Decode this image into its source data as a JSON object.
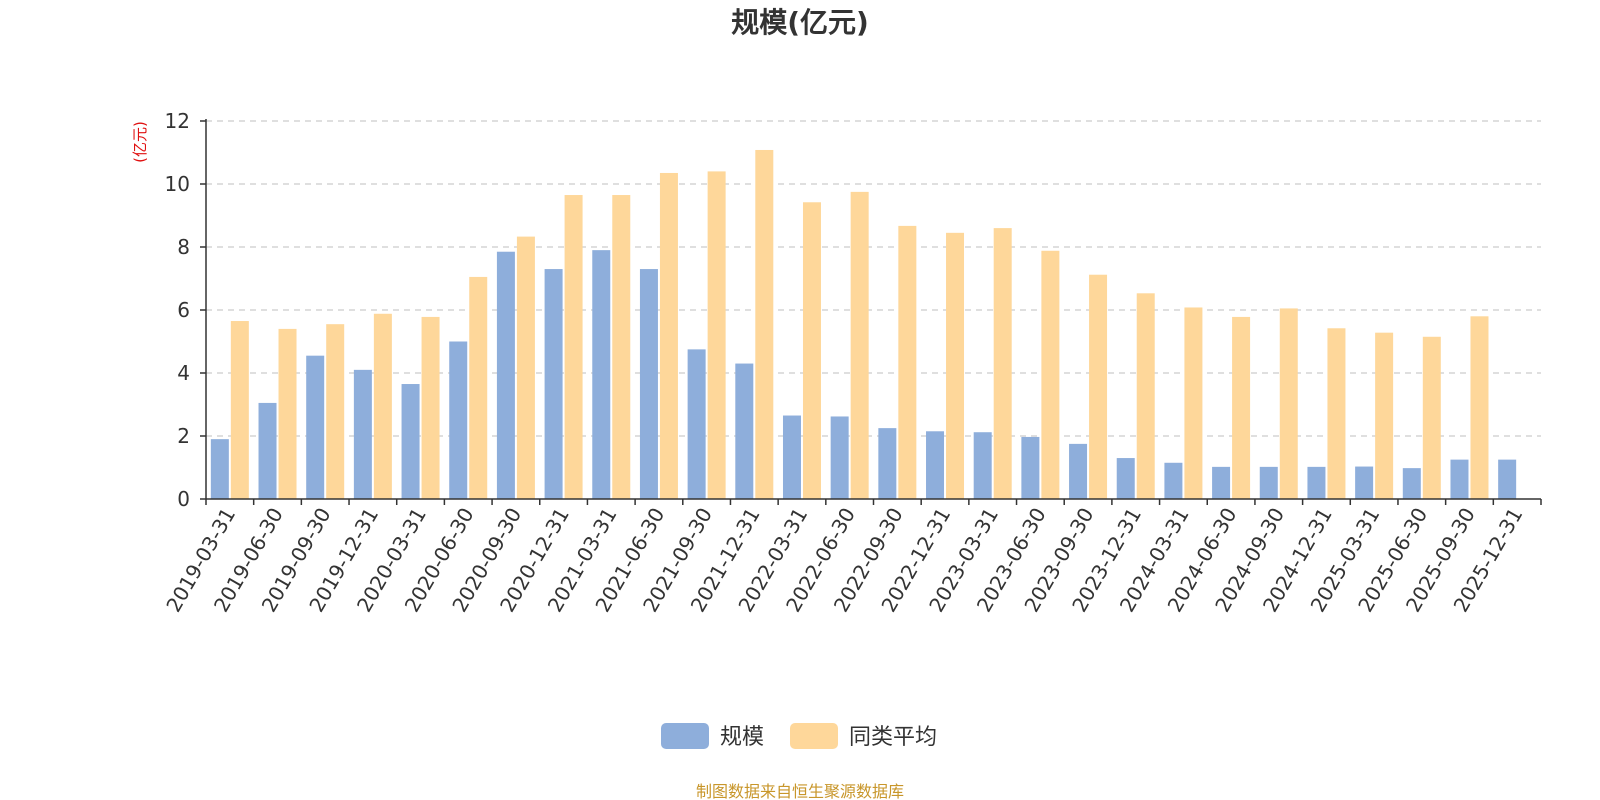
{
  "chart_data": {
    "type": "bar",
    "title": "规模(亿元)",
    "ylabel": "(亿元)",
    "ylim": [
      0,
      12
    ],
    "yticks": [
      0,
      2,
      4,
      6,
      8,
      10,
      12
    ],
    "grid": true,
    "legend_position": "bottom",
    "categories": [
      "2019-03-31",
      "2019-06-30",
      "2019-09-30",
      "2019-12-31",
      "2020-03-31",
      "2020-06-30",
      "2020-09-30",
      "2020-12-31",
      "2021-03-31",
      "2021-06-30",
      "2021-09-30",
      "2021-12-31",
      "2022-03-31",
      "2022-06-30",
      "2022-09-30",
      "2022-12-31",
      "2023-03-31",
      "2023-06-30",
      "2023-09-30",
      "2023-12-31",
      "2024-03-31",
      "2024-06-30",
      "2024-09-30",
      "2024-12-31",
      "2025-03-31",
      "2025-06-30",
      "2025-09-30",
      "2025-12-31"
    ],
    "series": [
      {
        "name": "规模",
        "color": "#8eaedb",
        "values": [
          1.9,
          3.05,
          4.55,
          4.1,
          3.65,
          5.0,
          7.85,
          7.3,
          7.9,
          7.3,
          4.75,
          4.3,
          2.65,
          2.62,
          2.25,
          2.15,
          2.12,
          1.97,
          1.75,
          1.3,
          1.15,
          1.02,
          1.02,
          1.02,
          1.03,
          0.98,
          1.25,
          1.25
        ]
      },
      {
        "name": "同类平均",
        "color": "#fed79a",
        "values": [
          5.65,
          5.4,
          5.55,
          5.88,
          5.78,
          7.05,
          8.33,
          9.65,
          9.65,
          10.35,
          10.4,
          11.08,
          9.42,
          9.75,
          8.67,
          8.45,
          8.6,
          7.88,
          7.12,
          6.53,
          6.08,
          5.78,
          6.05,
          5.42,
          5.28,
          5.15,
          5.8,
          null
        ]
      }
    ]
  },
  "footer": {
    "source": "制图数据来自恒生聚源数据库"
  }
}
